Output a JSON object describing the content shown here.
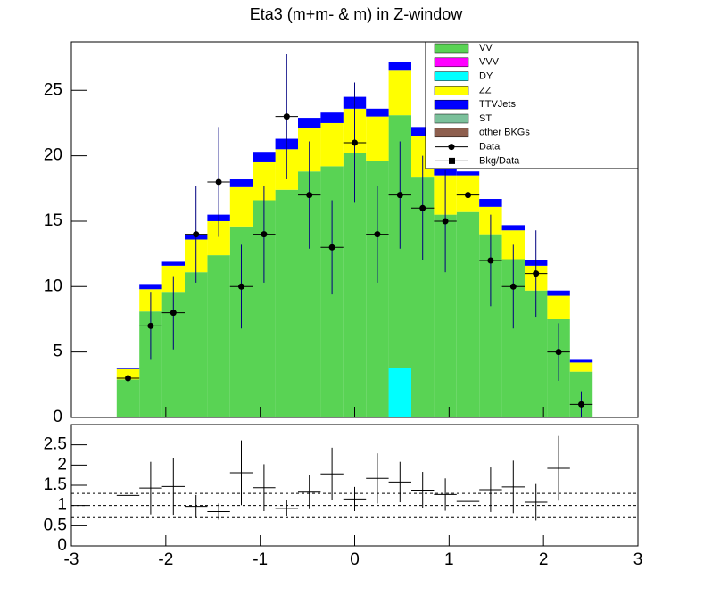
{
  "chart_data": {
    "type": "stacked-histogram",
    "title": "Eta3 (m+m- & m) in Z-window",
    "bins": [
      -3,
      -2.76,
      -2.52,
      -2.28,
      -2.04,
      -1.8,
      -1.56,
      -1.32,
      -1.08,
      -0.84,
      -0.6,
      -0.36,
      -0.12,
      0.12,
      0.36,
      0.6,
      0.84,
      1.08,
      1.32,
      1.56,
      1.8,
      2.04,
      2.28,
      2.52,
      2.76,
      3
    ],
    "xlim": [
      -3,
      3
    ],
    "xticks": [
      -3,
      -2,
      -1,
      0,
      1,
      2,
      3
    ],
    "ylim": [
      0,
      28.7
    ],
    "yticks": [
      0,
      5,
      10,
      15,
      20,
      25
    ],
    "series": [
      {
        "name": "VV",
        "color": "#59d354",
        "values": [
          0,
          0,
          2.9,
          8.1,
          9.6,
          11.1,
          12.4,
          14.6,
          16.6,
          17.4,
          18.8,
          19.2,
          20.2,
          19.6,
          23.1,
          18.4,
          15.5,
          15.7,
          14.0,
          12.1,
          9.7,
          7.5,
          3.5,
          0,
          0
        ]
      },
      {
        "name": "VVV",
        "color": "#ff00ff"
      },
      {
        "name": "DY",
        "color": "#00ffff",
        "stacked": false,
        "values": [
          0,
          0,
          0,
          0,
          0,
          0,
          0,
          0,
          0,
          0,
          0,
          0,
          0,
          0,
          3.8,
          0,
          0,
          0,
          0,
          0,
          0,
          0,
          0,
          0,
          0
        ]
      },
      {
        "name": "ZZ",
        "color": "#ffff00",
        "values": [
          0,
          0,
          0.8,
          1.7,
          2.0,
          2.5,
          2.6,
          3.0,
          2.9,
          3.1,
          3.3,
          3.3,
          3.4,
          3.4,
          3.4,
          3.1,
          3.0,
          2.8,
          2.1,
          2.2,
          1.9,
          1.8,
          0.7,
          0,
          0
        ]
      },
      {
        "name": "TTVJets",
        "color": "#0000ff",
        "values": [
          0,
          0,
          0.1,
          0.4,
          0.3,
          0.4,
          0.5,
          0.6,
          0.8,
          0.8,
          0.8,
          0.8,
          0.9,
          0.6,
          0.7,
          0.7,
          0.6,
          0.3,
          0.6,
          0.4,
          0.4,
          0.4,
          0.2,
          0,
          0
        ]
      },
      {
        "name": "ST",
        "color": "#7bc09b"
      },
      {
        "name": "other BKGs",
        "color": "#8e5f4e"
      }
    ],
    "data": {
      "name": "Data",
      "color": "#000000",
      "values": [
        null,
        null,
        3,
        7,
        8,
        14,
        18,
        10,
        14,
        23,
        17,
        13,
        21,
        14,
        17,
        16,
        15,
        17,
        12,
        10,
        11,
        5,
        1,
        null,
        null
      ],
      "errors": [
        null,
        null,
        1.7,
        2.6,
        2.8,
        3.7,
        4.2,
        3.2,
        3.7,
        4.8,
        4.1,
        3.6,
        4.6,
        3.7,
        4.1,
        4.0,
        3.9,
        4.1,
        3.5,
        3.2,
        3.3,
        2.2,
        1.0,
        null,
        null
      ]
    },
    "ratio": {
      "name": "Bkg/Data",
      "color": "#000000",
      "values": [
        null,
        null,
        1.25,
        1.43,
        1.47,
        0.98,
        0.85,
        1.81,
        1.44,
        0.93,
        1.33,
        1.78,
        1.16,
        1.67,
        1.58,
        1.38,
        1.27,
        1.1,
        1.39,
        1.46,
        1.08,
        1.92,
        null,
        null,
        null
      ],
      "errors": [
        null,
        null,
        1.05,
        0.65,
        0.7,
        0.28,
        0.2,
        0.8,
        0.58,
        0.2,
        0.42,
        0.65,
        0.3,
        0.62,
        0.5,
        0.45,
        0.4,
        0.3,
        0.55,
        0.65,
        0.45,
        0.8,
        null,
        null,
        null
      ],
      "ylim": [
        0,
        3
      ],
      "yticks": [
        0,
        0.5,
        1,
        1.5,
        2,
        2.5
      ],
      "reference_lines": [
        0.7,
        1,
        1.3
      ]
    }
  }
}
